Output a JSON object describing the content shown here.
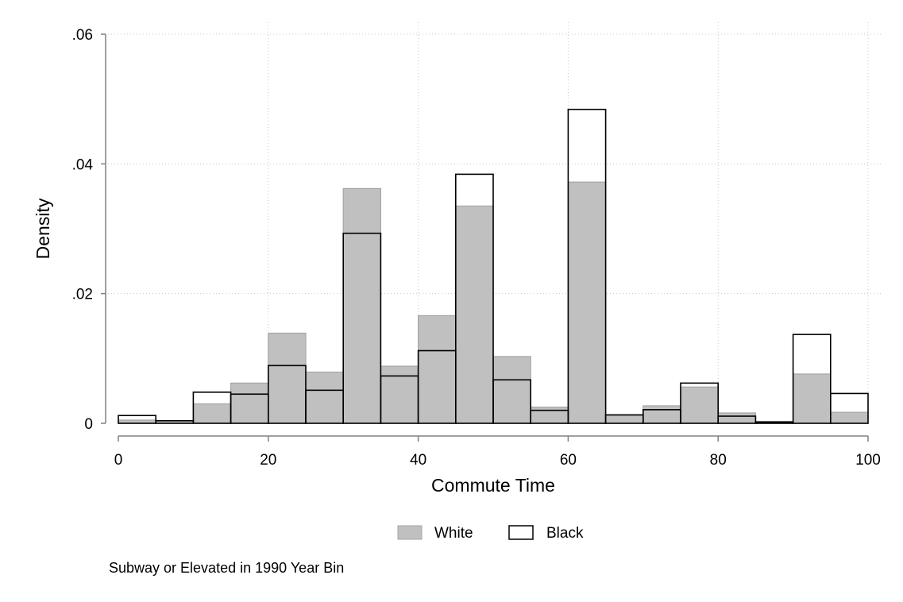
{
  "chart_data": {
    "type": "histogram",
    "xlabel": "Commute Time",
    "ylabel": "Density",
    "xlim": [
      0,
      100
    ],
    "ylim": [
      0,
      0.06
    ],
    "bin_width": 5,
    "x_ticks": [
      0,
      20,
      40,
      60,
      80,
      100
    ],
    "x_tick_labels": [
      "0",
      "20",
      "40",
      "60",
      "80",
      "100"
    ],
    "y_ticks": [
      0,
      0.02,
      0.04,
      0.06
    ],
    "y_tick_labels": [
      "0",
      ".02",
      ".04",
      ".06"
    ],
    "grid": true,
    "legend_position": "bottom",
    "bins": [
      0,
      5,
      10,
      15,
      20,
      25,
      30,
      35,
      40,
      45,
      50,
      55,
      60,
      65,
      70,
      75,
      80,
      85,
      90,
      95
    ],
    "series": [
      {
        "name": "White",
        "style": "filled",
        "color": "#c0c0c0",
        "edge_color": "#a6a6a6",
        "values": [
          0.0005,
          0.0003,
          0.003,
          0.0062,
          0.0139,
          0.0079,
          0.0362,
          0.0088,
          0.0166,
          0.0335,
          0.0103,
          0.0025,
          0.0372,
          0.0012,
          0.0027,
          0.0056,
          0.0016,
          0.0003,
          0.0076,
          0.0017
        ]
      },
      {
        "name": "Black",
        "style": "outline",
        "color": "#000000",
        "values": [
          0.0012,
          0.0004,
          0.0048,
          0.0045,
          0.0089,
          0.0051,
          0.0293,
          0.0073,
          0.0112,
          0.0384,
          0.0067,
          0.002,
          0.0484,
          0.0013,
          0.0021,
          0.0062,
          0.0011,
          0.0002,
          0.0137,
          0.0046
        ]
      }
    ],
    "note": "Subway or Elevated in 1990 Year Bin"
  }
}
